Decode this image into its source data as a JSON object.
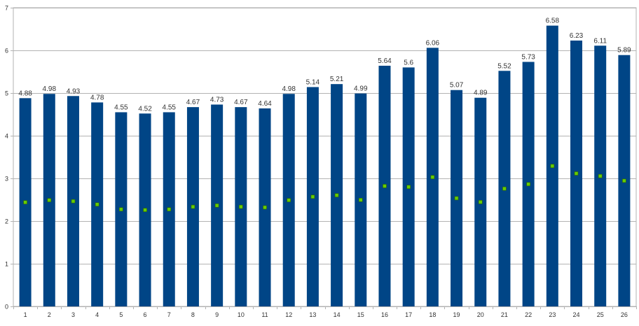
{
  "chart_data": {
    "type": "bar",
    "categories": [
      "1",
      "2",
      "3",
      "4",
      "5",
      "6",
      "7",
      "8",
      "9",
      "10",
      "11",
      "12",
      "13",
      "14",
      "15",
      "16",
      "17",
      "18",
      "19",
      "20",
      "21",
      "22",
      "23",
      "24",
      "25",
      "26"
    ],
    "series": [
      {
        "type": "bar",
        "values": [
          4.88,
          4.98,
          4.93,
          4.78,
          4.55,
          4.52,
          4.55,
          4.67,
          4.73,
          4.67,
          4.64,
          4.98,
          5.14,
          5.21,
          4.99,
          5.64,
          5.6,
          6.06,
          5.07,
          4.89,
          5.52,
          5.73,
          6.58,
          6.23,
          6.11,
          5.89
        ],
        "data_labels": [
          "4.88",
          "4.98",
          "4.93",
          "4.78",
          "4.55",
          "4.52",
          "4.55",
          "4.67",
          "4.73",
          "4.67",
          "4.64",
          "4.98",
          "5.14",
          "5.21",
          "4.99",
          "5.64",
          "5.6",
          "6.06",
          "5.07",
          "4.89",
          "5.52",
          "5.73",
          "6.58",
          "6.23",
          "6.11",
          "5.89"
        ],
        "color": "#004586"
      },
      {
        "type": "point",
        "values": [
          2.44,
          2.49,
          2.465,
          2.39,
          2.275,
          2.26,
          2.275,
          2.335,
          2.365,
          2.335,
          2.32,
          2.49,
          2.57,
          2.605,
          2.495,
          2.82,
          2.8,
          3.03,
          2.535,
          2.445,
          2.76,
          2.865,
          3.29,
          3.115,
          3.055,
          2.945
        ],
        "color": "#66cc00"
      }
    ],
    "ylim": [
      0,
      7
    ],
    "yticks": [
      "0",
      "1",
      "2",
      "3",
      "4",
      "5",
      "6",
      "7"
    ],
    "grid": true,
    "legend": "none"
  }
}
